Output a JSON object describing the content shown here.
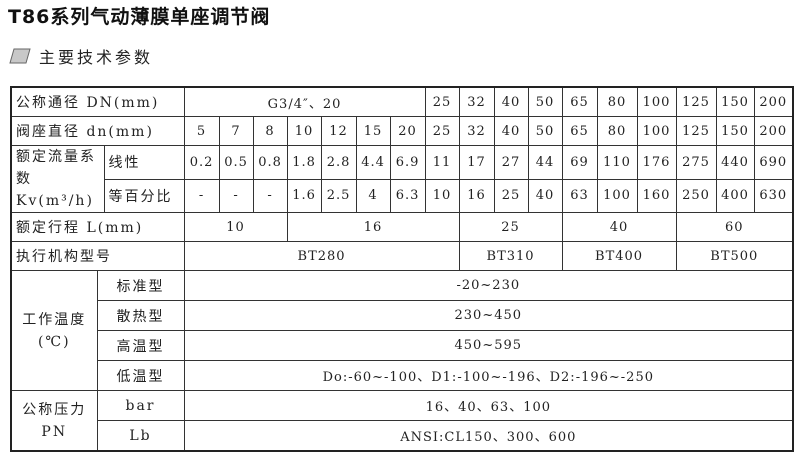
{
  "title": "T86系列气动薄膜单座调节阀",
  "section": {
    "icon": "parallelogram-icon",
    "label": "主要技术参数"
  },
  "table": {
    "nominal_dn": {
      "label": "公称通径 DN(mm)",
      "small": "G3/4″、20",
      "values": [
        "25",
        "32",
        "40",
        "50",
        "65",
        "80",
        "100",
        "125",
        "150",
        "200"
      ]
    },
    "seat_dn": {
      "label": "阀座直径 dn(mm)",
      "values": [
        "5",
        "7",
        "8",
        "10",
        "12",
        "15",
        "20",
        "25",
        "32",
        "40",
        "50",
        "65",
        "80",
        "100",
        "125",
        "150",
        "200"
      ]
    },
    "kv": {
      "label": "额定流量系数Kv(m³/h)",
      "linear": {
        "label": "线性",
        "values": [
          "0.2",
          "0.5",
          "0.8",
          "1.8",
          "2.8",
          "4.4",
          "6.9",
          "11",
          "17",
          "27",
          "44",
          "69",
          "110",
          "176",
          "275",
          "440",
          "690"
        ]
      },
      "equal": {
        "label": "等百分比",
        "values": [
          "-",
          "-",
          "-",
          "1.6",
          "2.5",
          "4",
          "6.3",
          "10",
          "16",
          "25",
          "40",
          "63",
          "100",
          "160",
          "250",
          "400",
          "630"
        ]
      }
    },
    "stroke": {
      "label": "额定行程 L(mm)",
      "values": [
        "10",
        "16",
        "25",
        "40",
        "60"
      ]
    },
    "actuator": {
      "label": "执行机构型号",
      "values": [
        "BT280",
        "BT310",
        "BT400",
        "BT500"
      ]
    },
    "temperature": {
      "label": "工作温度(℃)",
      "rows": [
        {
          "label": "标准型",
          "value": "-20~230"
        },
        {
          "label": "散热型",
          "value": "230~450"
        },
        {
          "label": "高温型",
          "value": "450~595"
        },
        {
          "label": "低温型",
          "value": "Do:-60~-100、D1:-100~-196、D2:-196~-250"
        }
      ]
    },
    "pressure": {
      "label": "公称压力PN",
      "rows": [
        {
          "label": "bar",
          "value": "16、40、63、100"
        },
        {
          "label": "Lb",
          "value": "ANSI:CL150、300、600"
        }
      ]
    }
  }
}
